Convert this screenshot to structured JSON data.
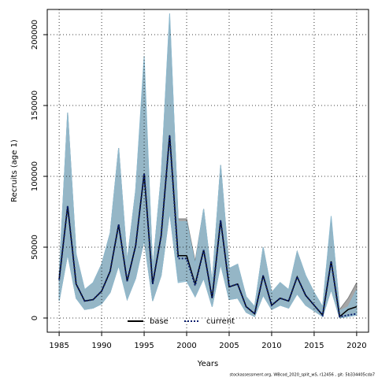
{
  "chart_data": {
    "type": "line",
    "x_label": "Years",
    "y_label": "Recruits (age 1)",
    "footer": "stockassessment.org, WBcod_2020_split_wS, r12456 , git: 5b334405cda7",
    "x": [
      1985,
      1986,
      1987,
      1988,
      1989,
      1990,
      1991,
      1992,
      1993,
      1994,
      1995,
      1996,
      1997,
      1998,
      1999,
      2000,
      2001,
      2002,
      2003,
      2004,
      2005,
      2006,
      2007,
      2008,
      2009,
      2010,
      2011,
      2012,
      2013,
      2014,
      2015,
      2016,
      2017,
      2018,
      2019,
      2020
    ],
    "series": [
      {
        "name": "base",
        "color": "#000000",
        "linestyle": "solid",
        "band_color": "#808080",
        "values": [
          27000,
          79000,
          24000,
          12000,
          13000,
          19000,
          33000,
          66000,
          26000,
          51000,
          102000,
          24000,
          58000,
          129000,
          44000,
          44000,
          24000,
          48000,
          14000,
          69000,
          22000,
          24000,
          8000,
          3000,
          30000,
          9000,
          14000,
          12000,
          29000,
          16000,
          9000,
          2000,
          40000,
          1000,
          6000,
          8000
        ],
        "upper": [
          30000,
          145000,
          45000,
          20000,
          25000,
          38000,
          60000,
          120000,
          40000,
          90000,
          180000,
          35000,
          100000,
          212000,
          70000,
          70000,
          40000,
          77000,
          25000,
          108000,
          35000,
          38000,
          15000,
          8000,
          50000,
          18000,
          25000,
          20000,
          47000,
          30000,
          18000,
          8000,
          70000,
          6000,
          14000,
          25000
        ],
        "lower": [
          12000,
          45000,
          14000,
          6000,
          7000,
          10000,
          18000,
          37000,
          13000,
          28000,
          55000,
          12000,
          30000,
          75000,
          26000,
          27000,
          15000,
          28000,
          8000,
          38000,
          13000,
          14000,
          4000,
          1000,
          16000,
          6000,
          9000,
          7000,
          17000,
          9000,
          5000,
          1000,
          20000,
          0,
          2000,
          3000
        ]
      },
      {
        "name": "current",
        "color": "#0a1e6e",
        "linestyle": "dotted",
        "band_color": "#8fbbd0",
        "values": [
          27000,
          79000,
          24000,
          12000,
          13000,
          19000,
          33000,
          66000,
          26000,
          51000,
          102000,
          24000,
          58000,
          129000,
          42000,
          42000,
          23000,
          48000,
          14000,
          69000,
          22000,
          24000,
          8000,
          3000,
          30000,
          9000,
          14000,
          12000,
          29000,
          16000,
          9000,
          2000,
          40000,
          1000,
          2000,
          3000
        ],
        "upper": [
          30000,
          145000,
          45000,
          20000,
          25000,
          38000,
          60000,
          120000,
          40000,
          90000,
          185000,
          35000,
          100000,
          215000,
          68000,
          68000,
          38000,
          77000,
          25000,
          108000,
          35000,
          38000,
          15000,
          8000,
          50000,
          18000,
          25000,
          20000,
          47000,
          30000,
          18000,
          8000,
          72000,
          5000,
          8000,
          20000
        ],
        "lower": [
          12000,
          45000,
          14000,
          6000,
          7000,
          10000,
          18000,
          37000,
          13000,
          28000,
          55000,
          12000,
          30000,
          75000,
          25000,
          26000,
          15000,
          28000,
          8000,
          38000,
          13000,
          14000,
          4000,
          1000,
          16000,
          6000,
          9000,
          7000,
          17000,
          9000,
          5000,
          1000,
          20000,
          0,
          1000,
          2000
        ]
      }
    ],
    "xlim": [
      1983.6,
      2021.4
    ],
    "ylim": [
      -10000,
      217800
    ],
    "xticks": [
      1985,
      1990,
      1995,
      2000,
      2005,
      2010,
      2015,
      2020
    ],
    "yticks": [
      0,
      50000,
      100000,
      150000,
      200000
    ],
    "grid": true,
    "legend": "bottom"
  }
}
